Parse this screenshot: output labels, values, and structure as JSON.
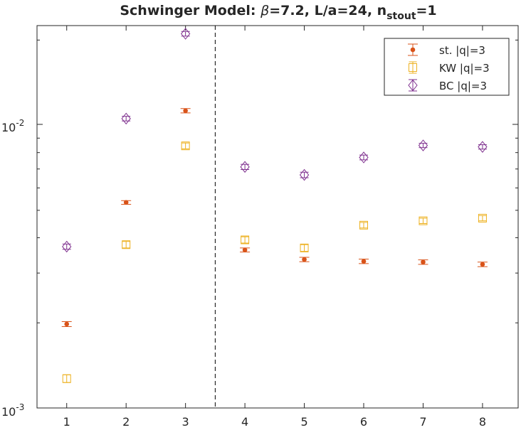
{
  "chart_data": {
    "type": "scatter",
    "title": {
      "main": "Schwinger Model: ",
      "beta": "β",
      "params": "=7.2, L/a=24, n",
      "sub": "stout",
      "tail": "=1"
    },
    "xlabel": "",
    "ylabel": "",
    "xlim": [
      0.5,
      8.6
    ],
    "ylim": [
      0.001,
      0.0225
    ],
    "yscale": "log",
    "xticks": [
      1,
      2,
      3,
      4,
      5,
      6,
      7,
      8
    ],
    "xtick_labels": [
      "1",
      "2",
      "3",
      "4",
      "5",
      "6",
      "7",
      "8"
    ],
    "ytick_labels": [
      {
        "base": "10",
        "exp": "-3"
      },
      {
        "base": "10",
        "exp": "-2"
      }
    ],
    "vline_x": 3.5,
    "legend_position": "top-right",
    "series": [
      {
        "name": "st.  |q|=3",
        "marker": "dot",
        "color": "#D95319",
        "x": [
          1,
          2,
          3,
          4,
          5,
          6,
          7,
          8
        ],
        "values": [
          0.00198,
          0.00533,
          0.01125,
          0.00362,
          0.00335,
          0.0033,
          0.00328,
          0.00322
        ],
        "errors": [
          4e-05,
          8e-05,
          0.0002,
          6e-05,
          6e-05,
          6e-05,
          6e-05,
          6e-05
        ]
      },
      {
        "name": "KW |q|=3",
        "marker": "square",
        "color": "#EDB120",
        "x": [
          1,
          2,
          3,
          4,
          5,
          6,
          7,
          8
        ],
        "values": [
          0.00127,
          0.00378,
          0.00845,
          0.00393,
          0.00368,
          0.00443,
          0.00459,
          0.00469
        ],
        "errors": [
          4e-05,
          0.0001,
          0.0002,
          0.0001,
          0.0001,
          0.0001,
          0.0001,
          0.0001
        ]
      },
      {
        "name": "BC  |q|=3",
        "marker": "diamond",
        "color": "#7E2F8E",
        "x": [
          1,
          2,
          3,
          4,
          5,
          6,
          7,
          8
        ],
        "values": [
          0.00372,
          0.01055,
          0.02105,
          0.00712,
          0.00667,
          0.00769,
          0.00848,
          0.00838
        ],
        "errors": [
          8e-05,
          0.0002,
          0.0004,
          0.00015,
          0.00015,
          0.00015,
          0.00015,
          0.00015
        ]
      }
    ]
  }
}
